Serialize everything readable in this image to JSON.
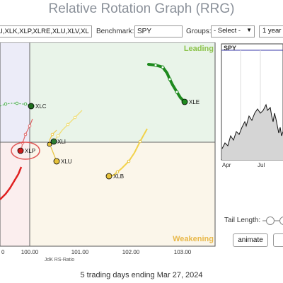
{
  "title": "Relative Rotation Graph (RRG)",
  "toolbar": {
    "symbols_value": "LI,XLK,XLP,XLRE,XLU,XLV,XL",
    "benchmark_label": "Benchmark:",
    "benchmark_value": "SPY",
    "groups_label": "Groups:",
    "groups_value": "- Select -",
    "period_value": "1 year"
  },
  "rrg": {
    "quadrants": {
      "leading": "Leading",
      "weakening": "Weakening"
    },
    "x_ticks": [
      "100.00",
      "101.00",
      "102.00",
      "103.00"
    ],
    "x_axis_label": "JdK RS-Ratio",
    "x_axis_label_prefix": "0",
    "colors": {
      "improving_bg": "#ececf8",
      "leading_bg": "#e9f4e9",
      "weakening_bg": "#fbf6ea",
      "lagging_bg": "#fbeeee",
      "XLC": "#4caf50",
      "XLE": "#1e8a1e",
      "XLB": "#e6c23a",
      "XLP": "#cc1a1a",
      "highlight": "#e05555"
    },
    "sectors": [
      {
        "symbol": "XLE",
        "label": "XLE"
      },
      {
        "symbol": "XLC",
        "label": "XLC"
      },
      {
        "symbol": "XLP",
        "label": "XLP"
      },
      {
        "symbol": "XLI",
        "label": "XLI"
      },
      {
        "symbol": "XLU",
        "label": "XLU"
      },
      {
        "symbol": "XLB",
        "label": "XLB"
      }
    ]
  },
  "price_chart": {
    "symbol": "SPY",
    "x_labels": [
      "Apr",
      "Jul"
    ]
  },
  "controls": {
    "tail_length_label": "Tail Length:",
    "animate_label": "animate",
    "extra_label": ""
  },
  "footer": "5 trading days ending Mar 27, 2024"
}
